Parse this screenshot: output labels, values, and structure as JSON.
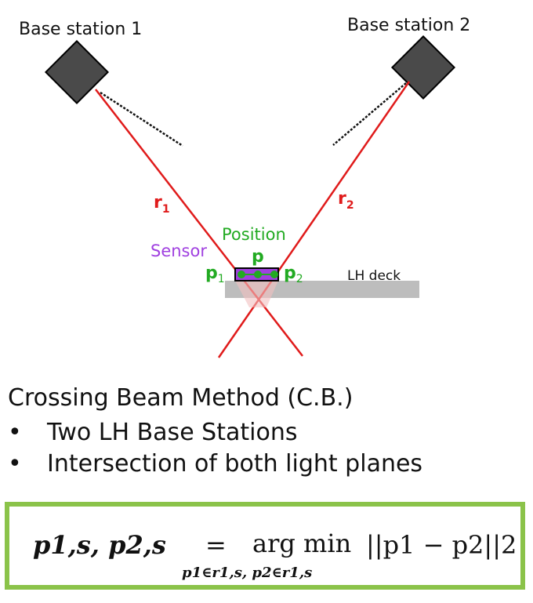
{
  "diagram": {
    "base_station_1_label": "Base station 1",
    "base_station_2_label": "Base station 2",
    "ray1_label": "r",
    "ray1_sub": "1",
    "ray2_label": "r",
    "ray2_sub": "2",
    "position_label": "Position",
    "sensor_label": "Sensor",
    "p_label": "p",
    "p1_label": "p",
    "p1_sub": "1",
    "p2_label": "p",
    "p2_sub": "2",
    "deck_label": "LH deck",
    "colors": {
      "ray": "#e01b1b",
      "position": "#22aa22",
      "sensor": "#a040e0",
      "station": "#4a4a4a",
      "deck": "#bdbdbd"
    }
  },
  "text": {
    "heading": "Crossing Beam Method (C.B.)",
    "bullets": [
      "Two LH Base Stations",
      "Intersection of both light planes"
    ],
    "bullet_char": "•"
  },
  "formula": {
    "lhs": "p1,s, p2,s",
    "equals": "=",
    "operator": "arg min",
    "constraint": "p1∈r1,s,  p2∈r1,s",
    "objective": "||p1 − p2||2",
    "border_color": "#8bc34a"
  }
}
